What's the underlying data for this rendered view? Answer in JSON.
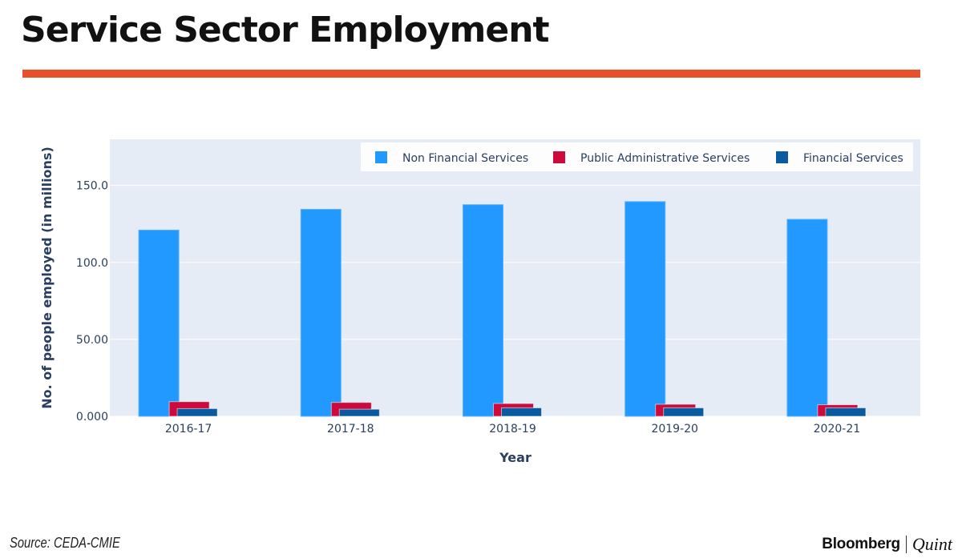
{
  "headline": "Service Sector Employment",
  "source": "Source: CEDA-CMIE",
  "logo": {
    "brand": "Bloomberg",
    "suffix": "Quint"
  },
  "colors": {
    "accent_rule": "#e8502b",
    "plot_background": "#e5ecf6",
    "non_financial": "#2299ff",
    "public_admin": "#cc0a3c",
    "financial": "#0a5aa0"
  },
  "chart_data": {
    "type": "bar",
    "categories": [
      "2016-17",
      "2017-18",
      "2018-19",
      "2019-20",
      "2020-21"
    ],
    "series": [
      {
        "name": "Non Financial Services",
        "values": [
          121,
          134.5,
          137.5,
          139.5,
          128
        ]
      },
      {
        "name": "Public Administrative Services",
        "values": [
          9.5,
          9,
          8.3,
          7.8,
          7.5
        ]
      },
      {
        "name": "Financial Services",
        "values": [
          5,
          4.6,
          5.5,
          5.5,
          5.5
        ]
      }
    ],
    "xlabel": "Year",
    "ylabel": "No. of people employed (in millions)",
    "ylim": [
      0,
      180
    ],
    "yticks": [
      0,
      50,
      100,
      150
    ],
    "ytick_labels": [
      "0.000",
      "50.00",
      "100.0",
      "150.0"
    ],
    "grid": true,
    "legend_position": "top-right"
  }
}
